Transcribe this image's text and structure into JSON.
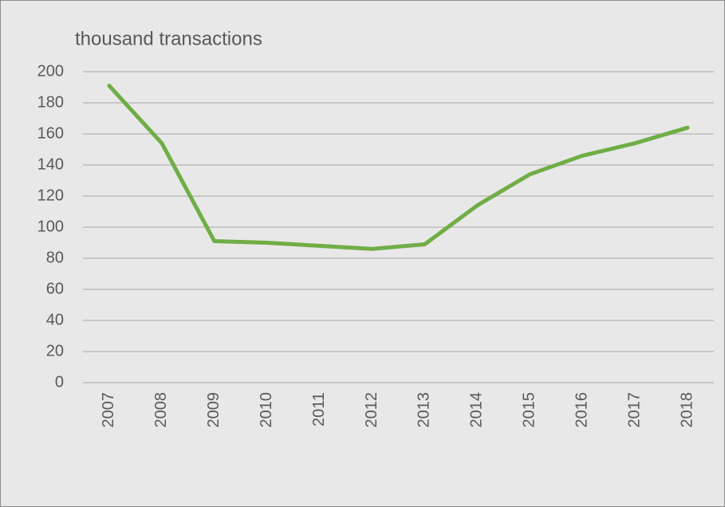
{
  "chart_data": {
    "type": "line",
    "ylabel": "thousand transactions",
    "categories": [
      "2007",
      "2008",
      "2009",
      "2010",
      "2011",
      "2012",
      "2013",
      "2014",
      "2015",
      "2016",
      "2017",
      "2018"
    ],
    "values": [
      191,
      154,
      91,
      90,
      88,
      86,
      89,
      114,
      134,
      146,
      154,
      164
    ],
    "color": "#70ad47",
    "ylim": [
      0,
      200
    ],
    "yticks": [
      0,
      20,
      40,
      60,
      80,
      100,
      120,
      140,
      160,
      180,
      200
    ],
    "grid": true
  }
}
